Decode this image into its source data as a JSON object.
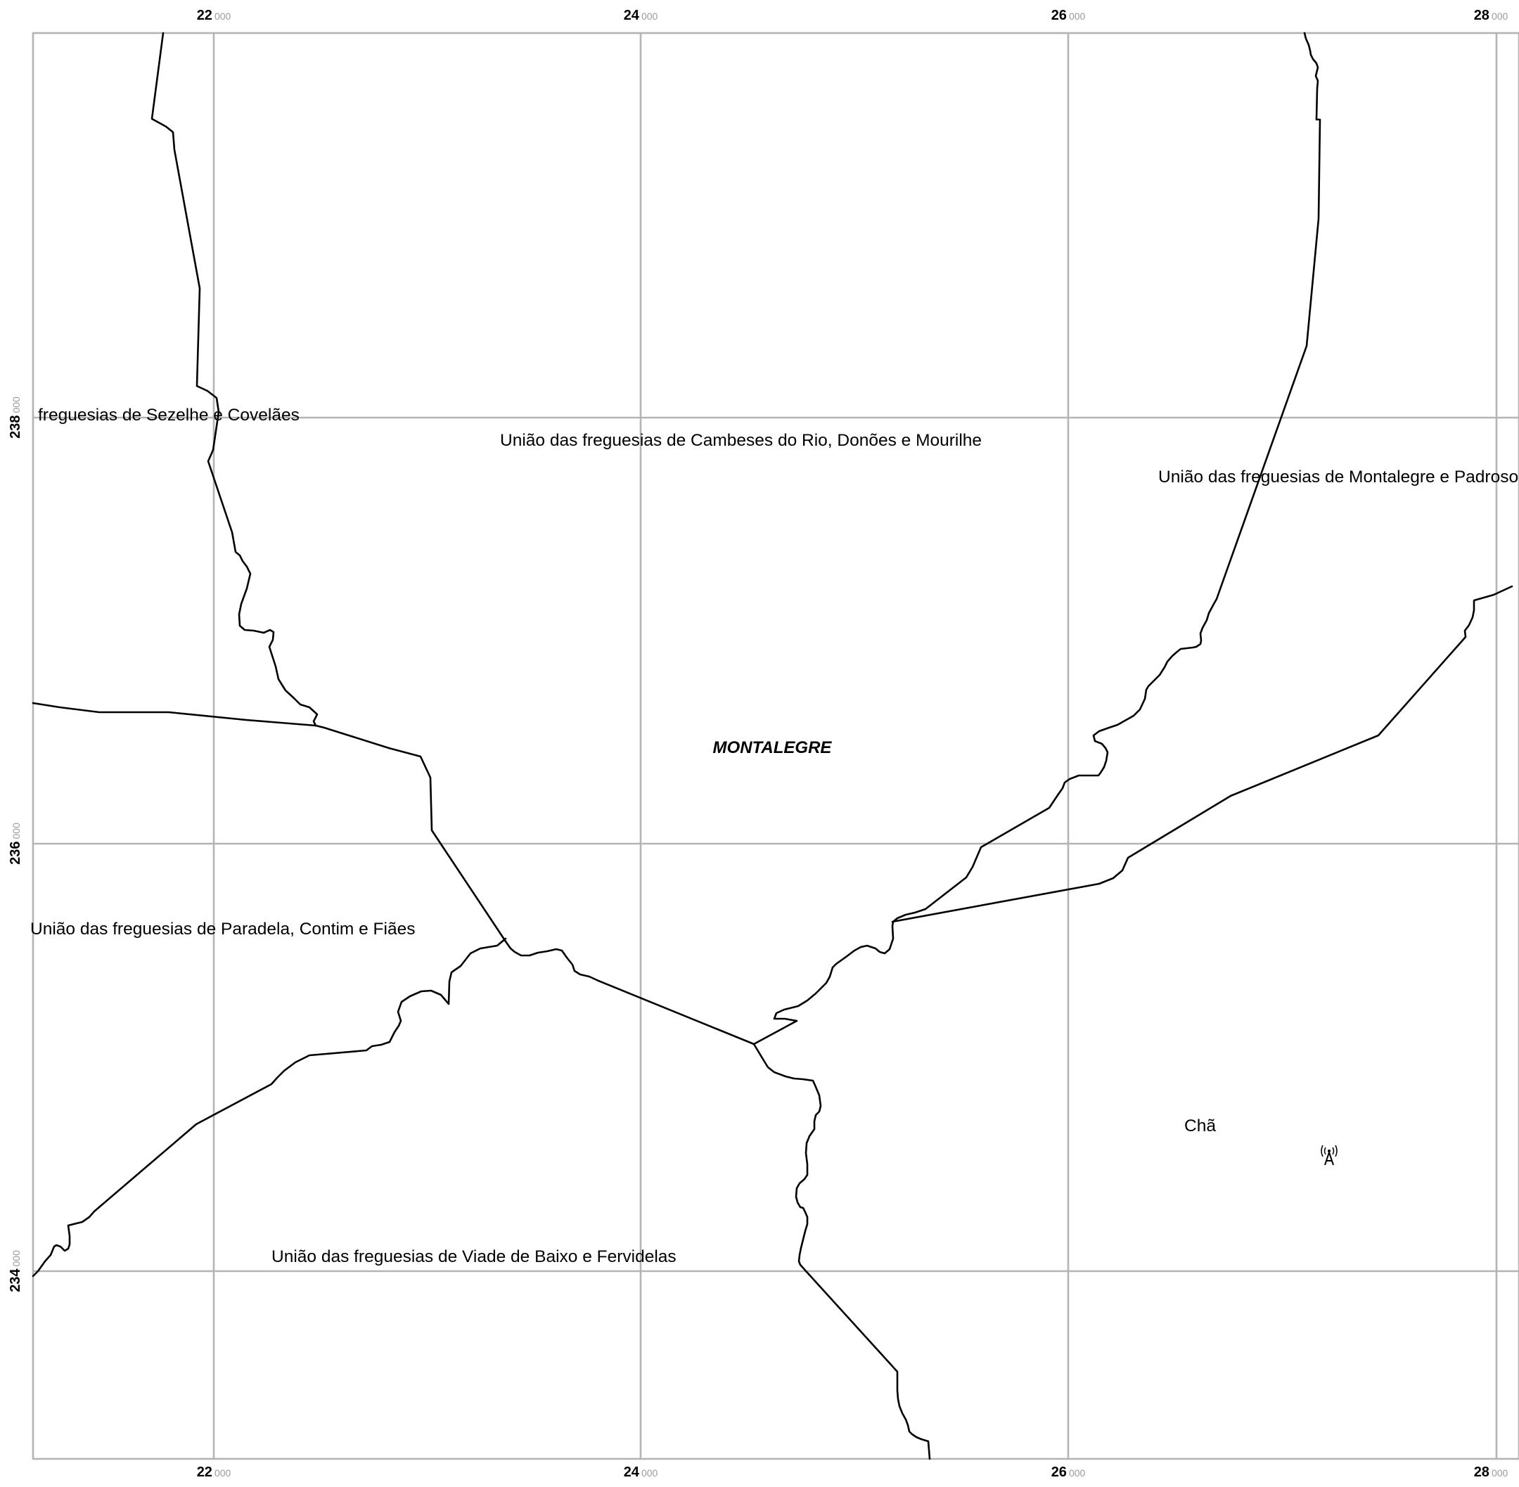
{
  "map": {
    "grid": {
      "x_ticks": [
        {
          "major": "22",
          "minor": "000"
        },
        {
          "major": "24",
          "minor": "000"
        },
        {
          "major": "26",
          "minor": "000"
        },
        {
          "major": "28",
          "minor": "000"
        }
      ],
      "y_ticks": [
        {
          "major": "238",
          "minor": "000"
        },
        {
          "major": "236",
          "minor": "000"
        },
        {
          "major": "234",
          "minor": "000"
        }
      ]
    },
    "labels": {
      "sezelhe": "freguesias de Sezelhe e Covelães",
      "cambeses": "União das freguesias de Cambeses do Rio, Donões e Mourilhe",
      "montalegre_padroso": "União das freguesias de Montalegre e Padroso",
      "paradela": "União das freguesias de Paradela, Contim e Fiães",
      "viade": "União das freguesias de Viade de Baixo e Fervidelas",
      "cha": "Chã",
      "town": "MONTALEGRE"
    },
    "symbols": {
      "antenna": "radio-tower-icon"
    },
    "colors": {
      "grid": "#b4b4b4",
      "boundary": "#000000",
      "coord_minor": "#9a9a9a",
      "background": "#ffffff"
    }
  }
}
